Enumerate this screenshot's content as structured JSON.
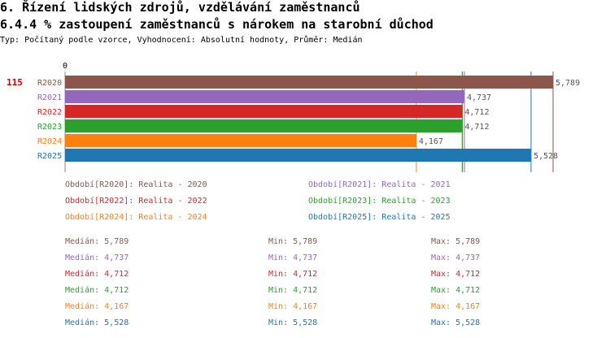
{
  "header": {
    "title": "6. Řízení lidských zdrojů, vzdělávání zaměstnanců",
    "subtitle": "6.4.4 % zastoupení zaměstnanců s nárokem na starobní důchod",
    "type_line": "Typ: Počítaný podle vzorce, Vyhodnocení: Absolutní hodnoty, Průměr: Medián"
  },
  "chart_data": {
    "type": "bar",
    "orientation": "horizontal",
    "group_label": "115",
    "axis_zero_label": "0",
    "xlim": [
      0,
      5789
    ],
    "categories": [
      "R2020",
      "R2021",
      "R2022",
      "R2023",
      "R2024",
      "R2025"
    ],
    "values": [
      5789,
      4737,
      4712,
      4712,
      4167,
      5528
    ],
    "value_labels": [
      "5,789",
      "4,737",
      "4,712",
      "4,712",
      "4,167",
      "5,528"
    ],
    "colors": [
      "#8c564b",
      "#9467bd",
      "#d62728",
      "#2ca02c",
      "#ff7f0e",
      "#1f77b4"
    ],
    "legend": [
      "Období[R2020]: Realita - 2020",
      "Období[R2021]: Realita - 2021",
      "Období[R2022]: Realita - 2022",
      "Období[R2023]: Realita - 2023",
      "Období[R2024]: Realita - 2024",
      "Období[R2025]: Realita - 2025"
    ],
    "stats": [
      {
        "median": "Medián: 5,789",
        "min": "Min: 5,789",
        "max": "Max: 5,789"
      },
      {
        "median": "Medián: 4,737",
        "min": "Min: 4,737",
        "max": "Max: 4,737"
      },
      {
        "median": "Medián: 4,712",
        "min": "Min: 4,712",
        "max": "Max: 4,712"
      },
      {
        "median": "Medián: 4,712",
        "min": "Min: 4,712",
        "max": "Max: 4,712"
      },
      {
        "median": "Medián: 4,167",
        "min": "Min: 4,167",
        "max": "Max: 4,167"
      },
      {
        "median": "Medián: 5,528",
        "min": "Min: 5,528",
        "max": "Max: 5,528"
      }
    ]
  }
}
